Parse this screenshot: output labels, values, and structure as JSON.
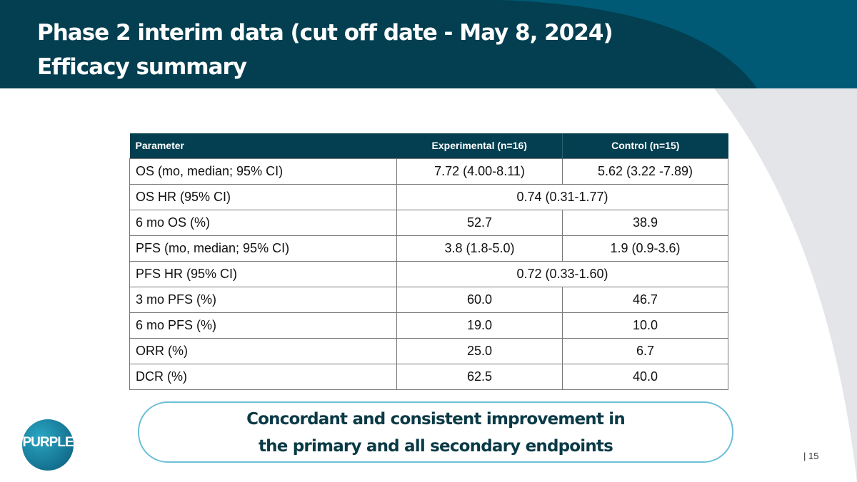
{
  "header": {
    "title_line1": "Phase 2 interim data (cut off date - May 8, 2024)",
    "title_line2": "Efficacy summary"
  },
  "table": {
    "headers": [
      "Parameter",
      "Experimental (n=16)",
      "Control (n=15)"
    ],
    "rows": [
      {
        "param": "OS (mo, median; 95% CI)",
        "experimental": "7.72 (4.00-8.11)",
        "control": "5.62 (3.22 -7.89)"
      },
      {
        "param": "OS HR (95% CI)",
        "combined": "0.74 (0.31-1.77)"
      },
      {
        "param": "6 mo OS (%)",
        "experimental": "52.7",
        "control": "38.9"
      },
      {
        "param": "PFS (mo, median; 95% CI)",
        "experimental": "3.8 (1.8-5.0)",
        "control": "1.9 (0.9-3.6)"
      },
      {
        "param": "PFS HR (95% CI)",
        "combined": "0.72 (0.33-1.60)"
      },
      {
        "param": "3 mo PFS (%)",
        "experimental": "60.0",
        "control": "46.7"
      },
      {
        "param": "6 mo PFS (%)",
        "experimental": "19.0",
        "control": "10.0"
      },
      {
        "param": "ORR (%)",
        "experimental": "25.0",
        "control": "6.7"
      },
      {
        "param": "DCR (%)",
        "experimental": "62.5",
        "control": "40.0"
      }
    ]
  },
  "callout": {
    "line1": "Concordant and consistent improvement in",
    "line2": "the primary and all secondary endpoints"
  },
  "logo": {
    "text": "PURPLE"
  },
  "footer": {
    "page": "| 15"
  },
  "colors": {
    "header_bg": "#033f50",
    "accent": "#6cc0d6"
  }
}
